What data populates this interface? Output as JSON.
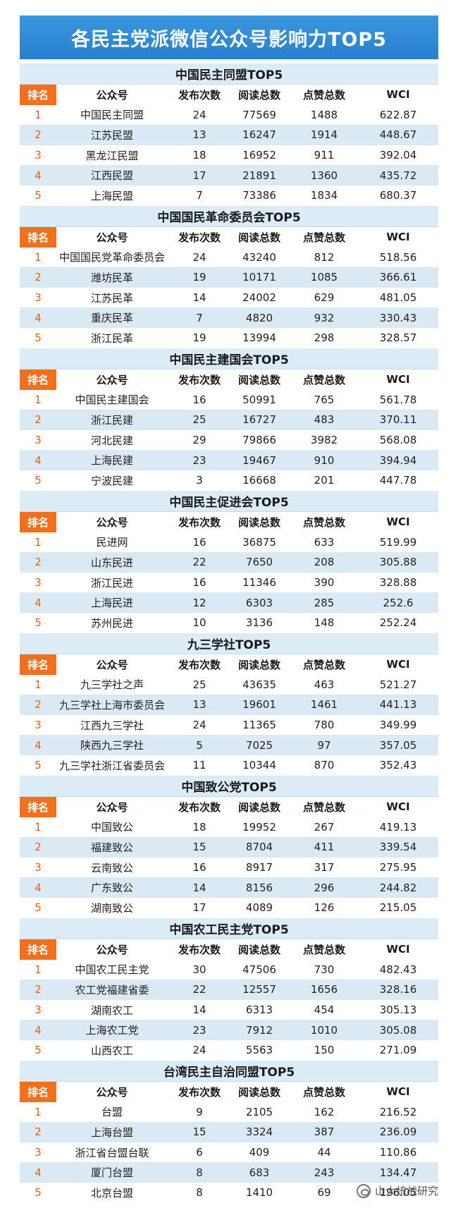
{
  "title": "各民主党派微信公众号影响力TOP5",
  "columns": {
    "rank": "排名",
    "name": "公众号",
    "posts": "发布次数",
    "reads": "阅读总数",
    "likes": "点赞总数",
    "wci": "WCI"
  },
  "sections": [
    {
      "title": "中国民主同盟TOP5",
      "rows": [
        {
          "rank": "1",
          "name": "中国民主同盟",
          "posts": "24",
          "reads": "77569",
          "likes": "1488",
          "wci": "622.87"
        },
        {
          "rank": "2",
          "name": "江苏民盟",
          "posts": "13",
          "reads": "16247",
          "likes": "1914",
          "wci": "448.67"
        },
        {
          "rank": "3",
          "name": "黑龙江民盟",
          "posts": "18",
          "reads": "16952",
          "likes": "911",
          "wci": "392.04"
        },
        {
          "rank": "4",
          "name": "江西民盟",
          "posts": "17",
          "reads": "21891",
          "likes": "1360",
          "wci": "435.72"
        },
        {
          "rank": "5",
          "name": "上海民盟",
          "posts": "7",
          "reads": "73386",
          "likes": "1834",
          "wci": "680.37"
        }
      ]
    },
    {
      "title": "中国国民革命委员会TOP5",
      "rows": [
        {
          "rank": "1",
          "name": "中国国民党革命委员会",
          "posts": "24",
          "reads": "43240",
          "likes": "812",
          "wci": "518.56"
        },
        {
          "rank": "2",
          "name": "潍坊民革",
          "posts": "19",
          "reads": "10171",
          "likes": "1085",
          "wci": "366.61"
        },
        {
          "rank": "3",
          "name": "江苏民革",
          "posts": "14",
          "reads": "24002",
          "likes": "629",
          "wci": "481.05"
        },
        {
          "rank": "4",
          "name": "重庆民革",
          "posts": "7",
          "reads": "4820",
          "likes": "932",
          "wci": "330.43"
        },
        {
          "rank": "5",
          "name": "浙江民革",
          "posts": "19",
          "reads": "13994",
          "likes": "298",
          "wci": "328.57"
        }
      ]
    },
    {
      "title": "中国民主建国会TOP5",
      "rows": [
        {
          "rank": "1",
          "name": "中国民主建国会",
          "posts": "16",
          "reads": "50991",
          "likes": "765",
          "wci": "561.78"
        },
        {
          "rank": "2",
          "name": "浙江民建",
          "posts": "25",
          "reads": "16727",
          "likes": "483",
          "wci": "370.11"
        },
        {
          "rank": "3",
          "name": "河北民建",
          "posts": "29",
          "reads": "79866",
          "likes": "3982",
          "wci": "568.08"
        },
        {
          "rank": "4",
          "name": "上海民建",
          "posts": "23",
          "reads": "19467",
          "likes": "910",
          "wci": "394.94"
        },
        {
          "rank": "5",
          "name": "宁波民建",
          "posts": "3",
          "reads": "16668",
          "likes": "201",
          "wci": "447.78"
        }
      ]
    },
    {
      "title": "中国民主促进会TOP5",
      "rows": [
        {
          "rank": "1",
          "name": "民进网",
          "posts": "16",
          "reads": "36875",
          "likes": "633",
          "wci": "519.99"
        },
        {
          "rank": "2",
          "name": "山东民进",
          "posts": "22",
          "reads": "7650",
          "likes": "208",
          "wci": "305.88"
        },
        {
          "rank": "3",
          "name": "浙江民进",
          "posts": "16",
          "reads": "11346",
          "likes": "390",
          "wci": "328.88"
        },
        {
          "rank": "4",
          "name": "上海民进",
          "posts": "12",
          "reads": "6303",
          "likes": "285",
          "wci": "252.6"
        },
        {
          "rank": "5",
          "name": "苏州民进",
          "posts": "10",
          "reads": "3136",
          "likes": "148",
          "wci": "252.24"
        }
      ]
    },
    {
      "title": "九三学社TOP5",
      "rows": [
        {
          "rank": "1",
          "name": "九三学社之声",
          "posts": "25",
          "reads": "43635",
          "likes": "463",
          "wci": "521.27"
        },
        {
          "rank": "2",
          "name": "九三学社上海市委员会",
          "posts": "13",
          "reads": "19601",
          "likes": "1461",
          "wci": "441.13"
        },
        {
          "rank": "3",
          "name": "江西九三学社",
          "posts": "24",
          "reads": "11365",
          "likes": "780",
          "wci": "349.99"
        },
        {
          "rank": "4",
          "name": "陕西九三学社",
          "posts": "5",
          "reads": "7025",
          "likes": "97",
          "wci": "357.05"
        },
        {
          "rank": "5",
          "name": "九三学社浙江省委员会",
          "posts": "11",
          "reads": "10344",
          "likes": "870",
          "wci": "352.43"
        }
      ]
    },
    {
      "title": "中国致公党TOP5",
      "rows": [
        {
          "rank": "1",
          "name": "中国致公",
          "posts": "18",
          "reads": "19952",
          "likes": "267",
          "wci": "419.13"
        },
        {
          "rank": "2",
          "name": "福建致公",
          "posts": "15",
          "reads": "8704",
          "likes": "411",
          "wci": "339.54"
        },
        {
          "rank": "3",
          "name": "云南致公",
          "posts": "16",
          "reads": "8917",
          "likes": "317",
          "wci": "275.95"
        },
        {
          "rank": "4",
          "name": "广东致公",
          "posts": "14",
          "reads": "8156",
          "likes": "296",
          "wci": "244.82"
        },
        {
          "rank": "5",
          "name": "湖南致公",
          "posts": "17",
          "reads": "4089",
          "likes": "126",
          "wci": "215.05"
        }
      ]
    },
    {
      "title": "中国农工民主党TOP5",
      "rows": [
        {
          "rank": "1",
          "name": "中国农工民主党",
          "posts": "30",
          "reads": "47506",
          "likes": "730",
          "wci": "482.43"
        },
        {
          "rank": "2",
          "name": "农工党福建省委",
          "posts": "22",
          "reads": "12557",
          "likes": "1656",
          "wci": "328.16"
        },
        {
          "rank": "3",
          "name": "湖南农工",
          "posts": "14",
          "reads": "6313",
          "likes": "454",
          "wci": "305.13"
        },
        {
          "rank": "4",
          "name": "上海农工党",
          "posts": "23",
          "reads": "7912",
          "likes": "1010",
          "wci": "305.08"
        },
        {
          "rank": "5",
          "name": "山西农工",
          "posts": "24",
          "reads": "5563",
          "likes": "150",
          "wci": "271.09"
        }
      ]
    },
    {
      "title": "台湾民主自治同盟TOP5",
      "rows": [
        {
          "rank": "1",
          "name": "台盟",
          "posts": "9",
          "reads": "2105",
          "likes": "162",
          "wci": "216.52"
        },
        {
          "rank": "2",
          "name": "上海台盟",
          "posts": "15",
          "reads": "3324",
          "likes": "387",
          "wci": "236.09"
        },
        {
          "rank": "3",
          "name": "浙江省台盟台联",
          "posts": "6",
          "reads": "409",
          "likes": "44",
          "wci": "110.86"
        },
        {
          "rank": "4",
          "name": "厦门台盟",
          "posts": "8",
          "reads": "683",
          "likes": "243",
          "wci": "134.47"
        },
        {
          "rank": "5",
          "name": "北京台盟",
          "posts": "8",
          "reads": "1410",
          "likes": "69",
          "wci": "196.05"
        }
      ]
    }
  ],
  "watermark": "山大统战研究",
  "colors": {
    "banner": "#2a7fcb",
    "section_bg": "#dcecf7",
    "rank_header": "#f0701d",
    "rank_text": "#e0621a",
    "alt_row": "#dbe9f5"
  }
}
